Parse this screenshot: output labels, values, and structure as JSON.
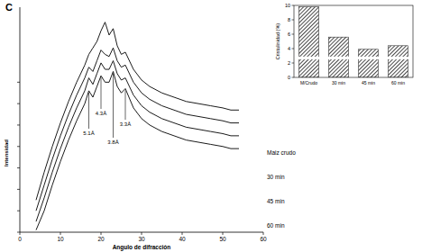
{
  "chart_data": [
    {
      "type": "line",
      "title": "C",
      "x_label": "Angulo de difracción",
      "y_label": "Intensidad",
      "x": [
        4,
        6,
        8,
        10,
        12,
        14,
        16,
        17,
        18,
        19,
        20,
        21,
        22,
        23,
        24,
        25,
        26,
        28,
        30,
        32,
        35,
        38,
        41,
        44,
        47,
        50,
        52,
        54
      ],
      "series": [
        {
          "name": "Maiz crudo",
          "color": "#000000",
          "values": [
            15,
            28,
            40,
            51,
            61,
            70,
            78,
            83,
            86,
            89,
            94,
            98,
            92,
            95,
            87,
            83,
            84,
            76,
            71,
            68,
            65,
            63,
            61,
            60,
            59,
            58,
            57,
            57
          ]
        },
        {
          "name": "30 min",
          "color": "#000000",
          "values": [
            10,
            22,
            34,
            45,
            55,
            64,
            72,
            77,
            75,
            80,
            85,
            83,
            82,
            86,
            80,
            77,
            78,
            70,
            65,
            62,
            59,
            57,
            55,
            54,
            53,
            52,
            51,
            51
          ]
        },
        {
          "name": "45 min",
          "color": "#000000",
          "values": [
            5,
            16,
            28,
            39,
            49,
            58,
            66,
            72,
            69,
            74,
            79,
            76,
            76,
            80,
            74,
            71,
            72,
            64,
            59,
            56,
            53,
            51,
            49,
            48,
            47,
            46,
            45,
            45
          ]
        },
        {
          "name": "60 min",
          "color": "#000000",
          "values": [
            1,
            10,
            22,
            33,
            43,
            52,
            60,
            66,
            63,
            68,
            73,
            70,
            70,
            75,
            68,
            65,
            67,
            58,
            53,
            50,
            47,
            45,
            43,
            42,
            41,
            40,
            39,
            39
          ]
        }
      ],
      "annotations": [
        {
          "text": "5.1Å",
          "x": 17
        },
        {
          "text": "4.3Å",
          "x": 20
        },
        {
          "text": "3.8Å",
          "x": 23
        },
        {
          "text": "3.3Å",
          "x": 26
        }
      ],
      "xlim": [
        0,
        60
      ],
      "xticks": [
        0,
        10,
        20,
        30,
        40,
        50,
        60
      ],
      "ylim": [
        0,
        105
      ],
      "yticks": [
        0,
        10,
        20,
        30,
        40,
        50,
        60,
        70
      ],
      "tick_labels": "x"
    },
    {
      "type": "bar",
      "y_label": "Cristalinidad (%)",
      "categories": [
        "M/Crudo",
        "30 min",
        "45 min",
        "60 min"
      ],
      "values": [
        9.8,
        5.6,
        3.9,
        4.4
      ],
      "color": "#333333",
      "ylim": [
        0,
        10
      ],
      "yticks": [
        0,
        2,
        4,
        6,
        8,
        10
      ]
    }
  ]
}
